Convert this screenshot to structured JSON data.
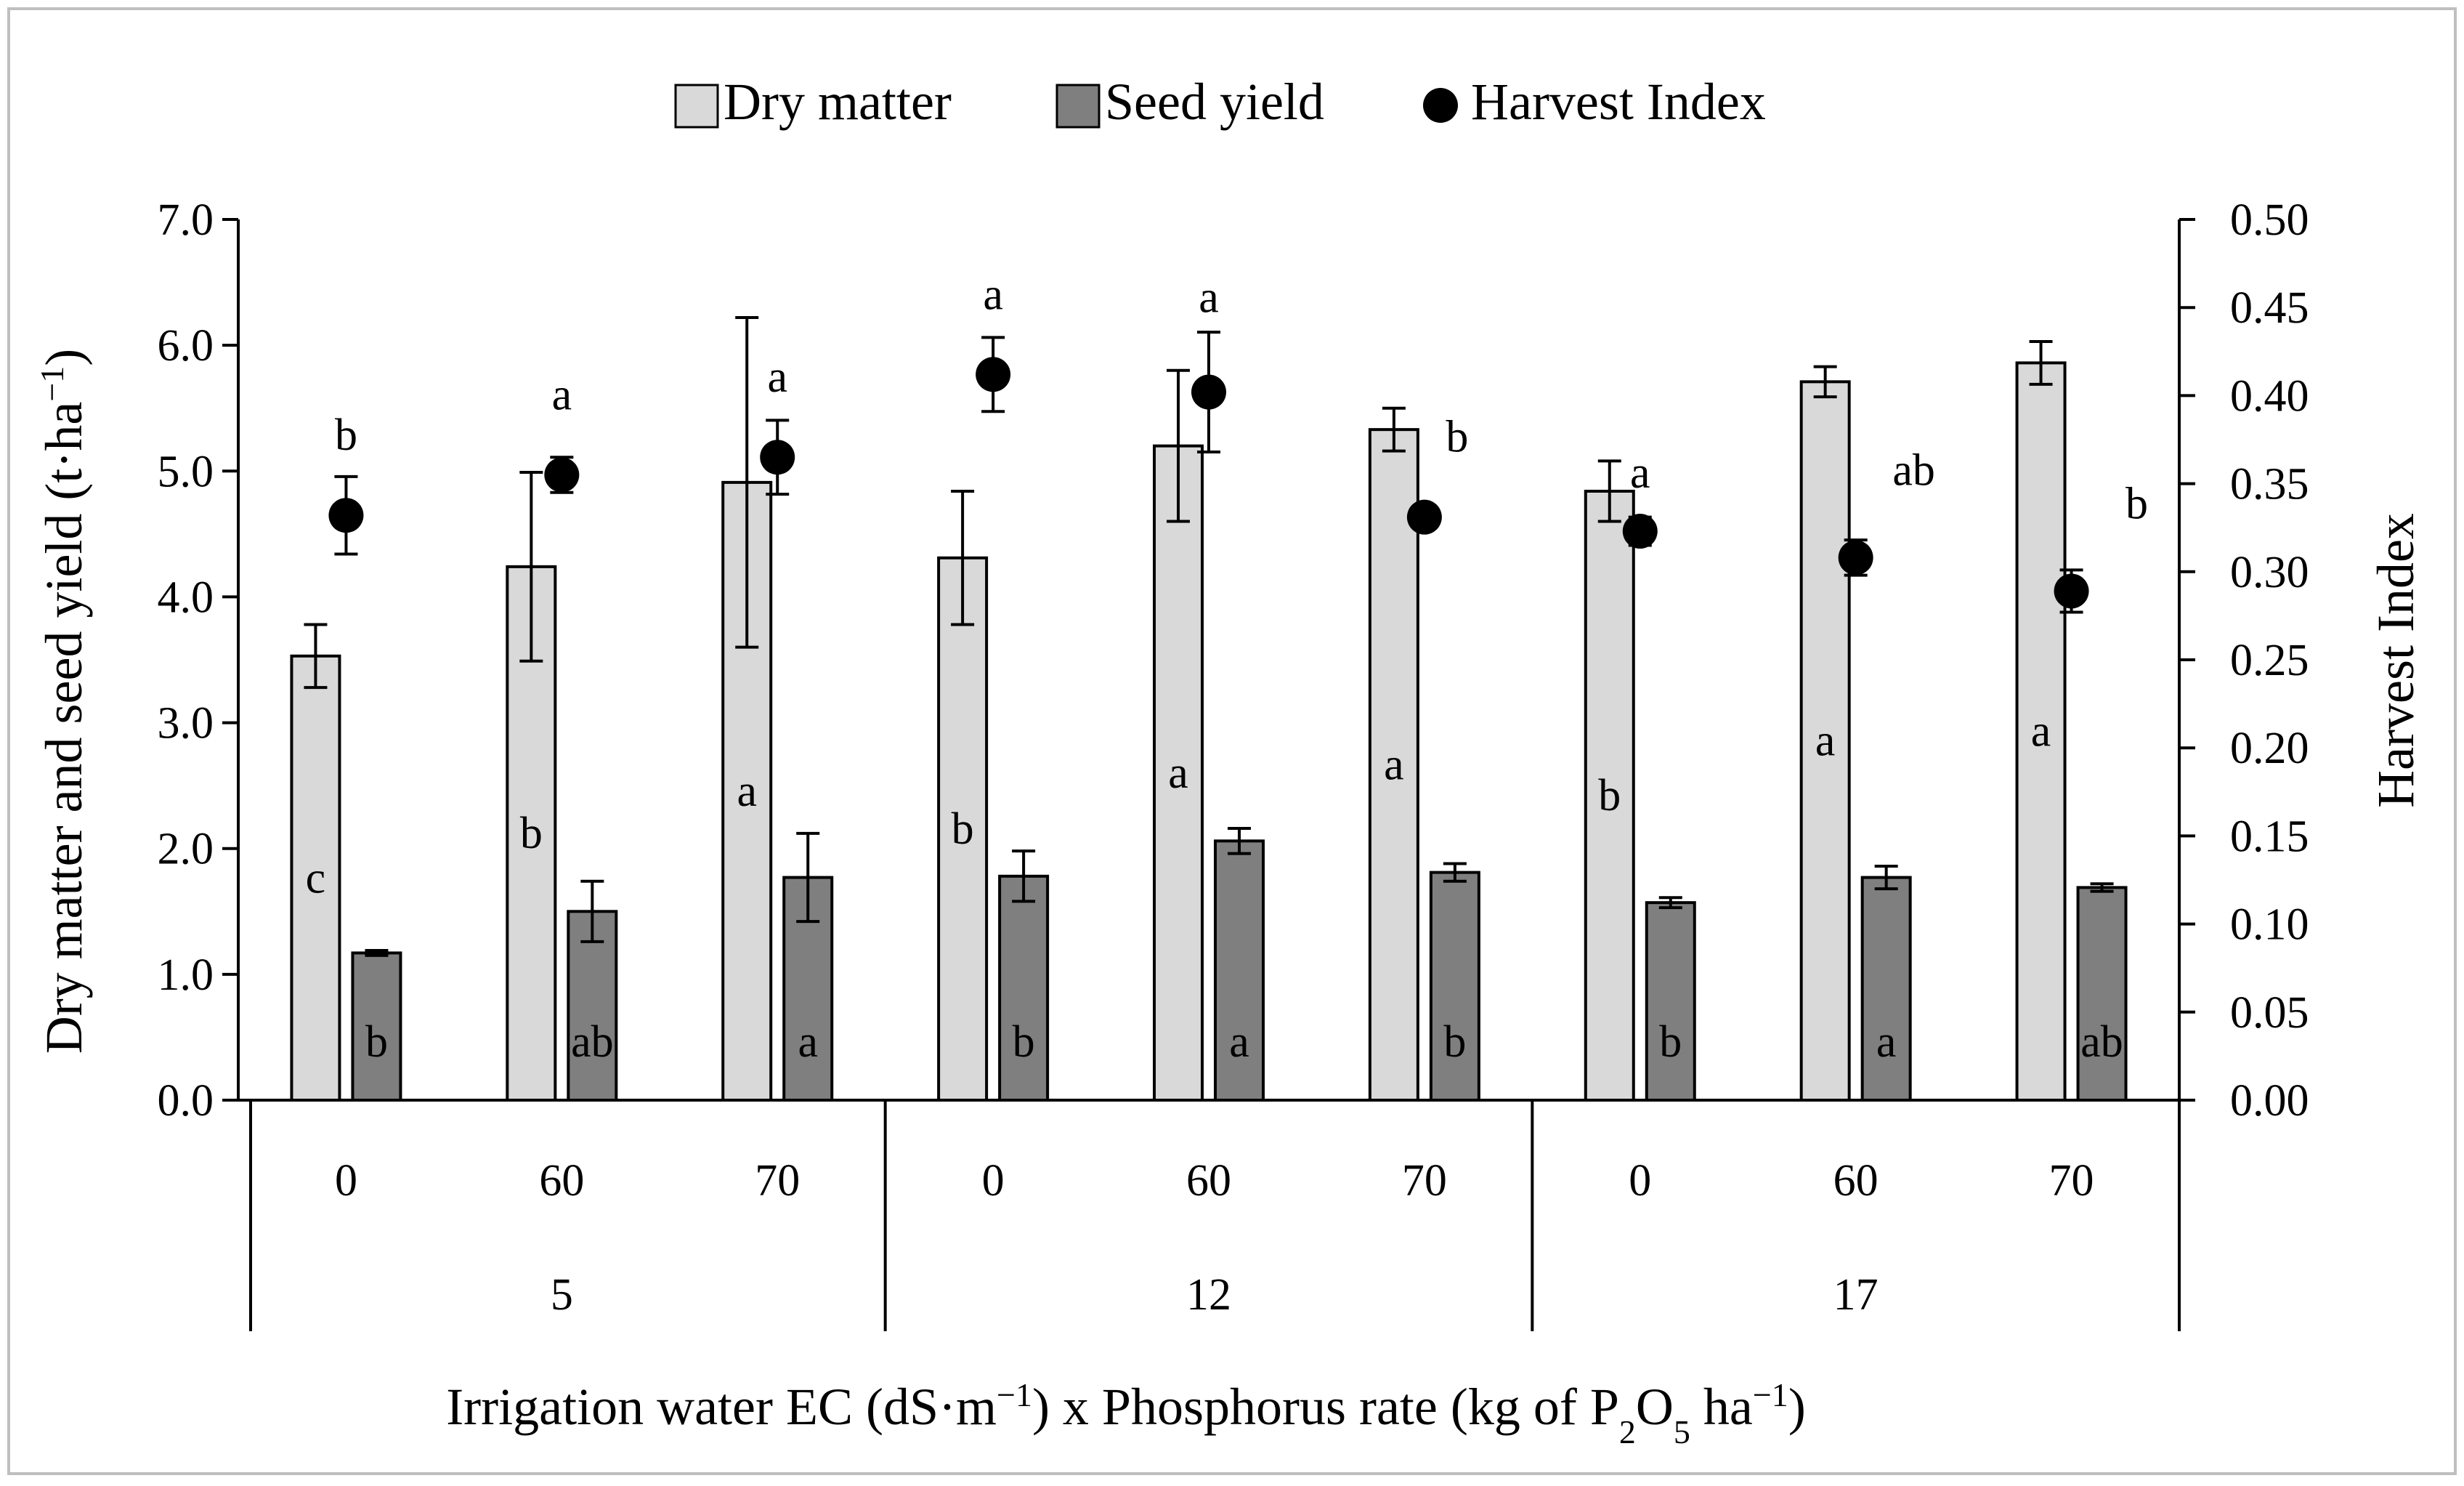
{
  "chart_data": {
    "type": "bar",
    "legend": {
      "position": "top-center",
      "items": [
        {
          "key": "dry_matter",
          "label": "Dry matter",
          "marker": "bar",
          "color": "#d9d9d9"
        },
        {
          "key": "seed_yield",
          "label": "Seed yield",
          "marker": "bar",
          "color": "#7f7f7f"
        },
        {
          "key": "harvest_index",
          "label": "Harvest Index",
          "marker": "circle",
          "color": "#000000"
        }
      ]
    },
    "groups": [
      {
        "label": "5",
        "categories": [
          "0",
          "60",
          "70"
        ]
      },
      {
        "label": "12",
        "categories": [
          "0",
          "60",
          "70"
        ]
      },
      {
        "label": "17",
        "categories": [
          "0",
          "60",
          "70"
        ]
      }
    ],
    "y_left": {
      "label_parts": {
        "main": "Dry matter and seed yield (t·ha",
        "sup": "−1",
        "end": ")"
      },
      "range": [
        0,
        7
      ],
      "ticks": [
        "0.0",
        "1.0",
        "2.0",
        "3.0",
        "4.0",
        "5.0",
        "6.0",
        "7.0"
      ]
    },
    "y_right": {
      "label": "Harvest Index",
      "range": [
        0,
        0.5
      ],
      "ticks": [
        "0.00",
        "0.05",
        "0.10",
        "0.15",
        "0.20",
        "0.25",
        "0.30",
        "0.35",
        "0.40",
        "0.45",
        "0.50"
      ]
    },
    "x_title_parts": [
      "Irrigation water EC (dS·m",
      "−1",
      ") x Phosphorus rate (kg of P",
      "2",
      "O",
      "5",
      " ha",
      "−1",
      ")"
    ],
    "series": [
      {
        "key": "dry_matter",
        "name": "Dry matter",
        "axis": "left",
        "type": "bar",
        "color": "#d9d9d9",
        "values": [
          3.53,
          4.24,
          4.91,
          4.31,
          5.2,
          5.33,
          4.84,
          5.71,
          5.86
        ],
        "errors": [
          0.25,
          0.75,
          1.31,
          0.53,
          0.6,
          0.17,
          0.24,
          0.12,
          0.17
        ],
        "letters": [
          "c",
          "b",
          "a",
          "b",
          "a",
          "a",
          "b",
          "a",
          "a"
        ]
      },
      {
        "key": "seed_yield",
        "name": "Seed yield",
        "axis": "left",
        "type": "bar",
        "color": "#7f7f7f",
        "values": [
          1.17,
          1.5,
          1.77,
          1.78,
          2.06,
          1.81,
          1.57,
          1.77,
          1.69
        ],
        "errors": [
          0.02,
          0.24,
          0.35,
          0.2,
          0.1,
          0.07,
          0.04,
          0.09,
          0.03
        ],
        "letters": [
          "b",
          "ab",
          "a",
          "b",
          "a",
          "b",
          "b",
          "a",
          "ab"
        ]
      },
      {
        "key": "harvest_index",
        "name": "Harvest Index",
        "axis": "right",
        "type": "scatter",
        "color": "#000000",
        "values": [
          0.332,
          0.355,
          0.365,
          0.412,
          0.402,
          0.331,
          0.323,
          0.308,
          0.289
        ],
        "errors": [
          0.022,
          0.01,
          0.021,
          0.021,
          0.034,
          0.004,
          0.008,
          0.01,
          0.012
        ],
        "letters": [
          "b",
          "a",
          "a",
          "a",
          "a",
          "b",
          "a",
          "ab",
          "b"
        ]
      }
    ]
  }
}
